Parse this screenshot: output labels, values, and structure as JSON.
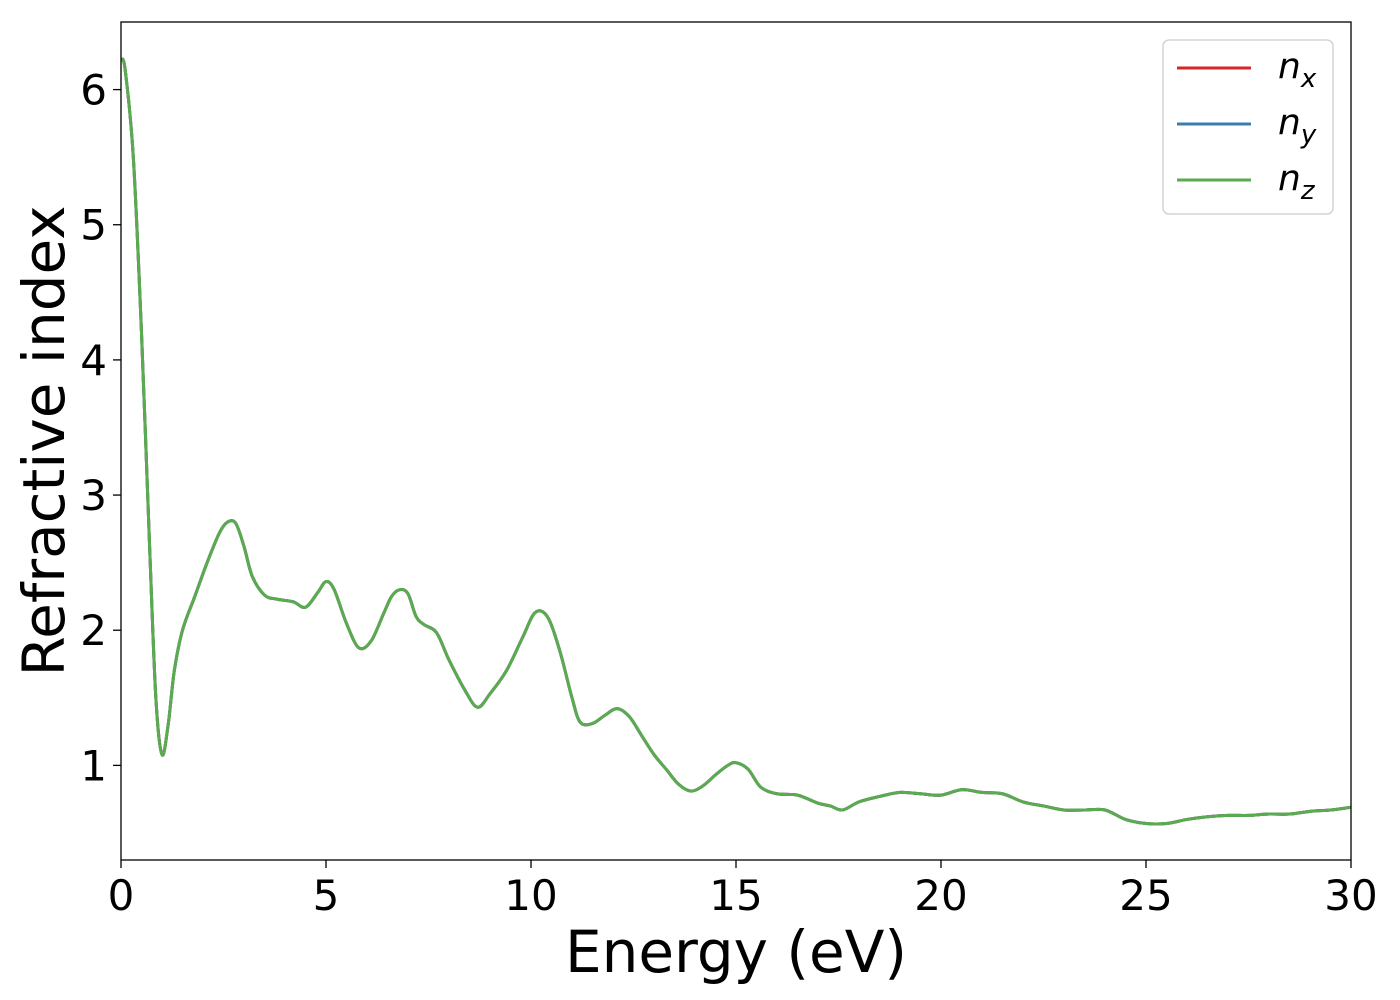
{
  "chart_data": {
    "type": "line",
    "title": "",
    "xlabel": "Energy (eV)",
    "ylabel": "Refractive index",
    "xlim": [
      0,
      30
    ],
    "ylim": [
      0.3,
      6.5
    ],
    "xticks": [
      0,
      5,
      10,
      15,
      20,
      25,
      30
    ],
    "yticks": [
      1,
      2,
      3,
      4,
      5,
      6
    ],
    "grid": false,
    "legend_position": "top-right",
    "series": [
      {
        "name": "n",
        "subscript": "x",
        "color": "#d62728"
      },
      {
        "name": "n",
        "subscript": "y",
        "color": "#3a7cad"
      },
      {
        "name": "n",
        "subscript": "z",
        "color": "#5aab4f"
      }
    ],
    "x": [
      0,
      0.1,
      0.3,
      0.5,
      0.7,
      0.85,
      1.0,
      1.15,
      1.3,
      1.5,
      1.8,
      2.1,
      2.4,
      2.6,
      2.8,
      3.0,
      3.2,
      3.5,
      3.8,
      4.2,
      4.5,
      4.8,
      5.0,
      5.2,
      5.5,
      5.8,
      6.1,
      6.4,
      6.6,
      6.8,
      7.0,
      7.2,
      7.4,
      7.7,
      8.0,
      8.4,
      8.7,
      9.0,
      9.4,
      9.8,
      10.1,
      10.4,
      10.7,
      11.0,
      11.2,
      11.5,
      11.8,
      12.1,
      12.4,
      12.7,
      13.0,
      13.3,
      13.6,
      13.9,
      14.2,
      14.5,
      14.8,
      15.0,
      15.3,
      15.6,
      16.0,
      16.5,
      17.0,
      17.3,
      17.6,
      18.0,
      18.5,
      19.0,
      19.5,
      20.0,
      20.5,
      21.0,
      21.5,
      22.0,
      22.5,
      23.0,
      23.5,
      24.0,
      24.5,
      25.0,
      25.5,
      26.0,
      26.5,
      27.0,
      27.5,
      28.0,
      28.5,
      29.0,
      29.5,
      30.0
    ],
    "y": [
      6.22,
      6.15,
      5.5,
      4.2,
      2.6,
      1.5,
      1.08,
      1.3,
      1.7,
      2.0,
      2.25,
      2.5,
      2.72,
      2.8,
      2.79,
      2.62,
      2.4,
      2.26,
      2.23,
      2.21,
      2.17,
      2.28,
      2.36,
      2.3,
      2.05,
      1.87,
      1.92,
      2.12,
      2.25,
      2.3,
      2.27,
      2.1,
      2.04,
      1.98,
      1.78,
      1.55,
      1.43,
      1.53,
      1.7,
      1.95,
      2.13,
      2.1,
      1.85,
      1.5,
      1.32,
      1.31,
      1.37,
      1.42,
      1.36,
      1.22,
      1.08,
      0.97,
      0.86,
      0.81,
      0.85,
      0.93,
      1.0,
      1.02,
      0.97,
      0.84,
      0.79,
      0.78,
      0.72,
      0.7,
      0.67,
      0.73,
      0.77,
      0.8,
      0.79,
      0.78,
      0.82,
      0.8,
      0.79,
      0.73,
      0.7,
      0.67,
      0.67,
      0.67,
      0.6,
      0.57,
      0.57,
      0.6,
      0.62,
      0.63,
      0.63,
      0.64,
      0.64,
      0.66,
      0.67,
      0.69
    ]
  }
}
